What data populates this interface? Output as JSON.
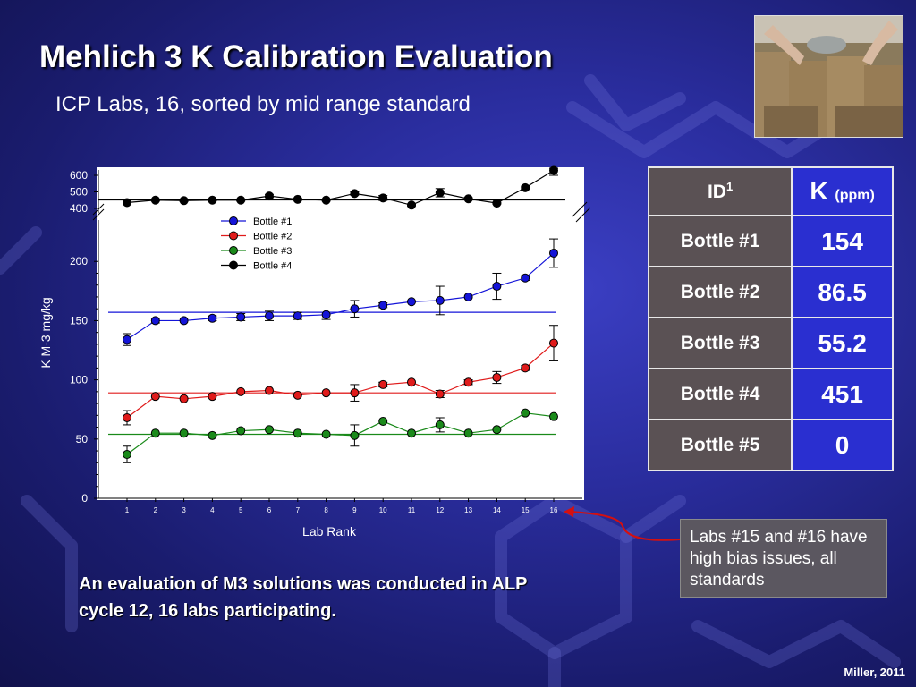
{
  "slide": {
    "title": "Mehlich 3 K Calibration Evaluation",
    "subtitle": "ICP Labs, 16, sorted by mid range standard",
    "bottom_note": "An evaluation of M3 solutions was conducted in ALP cycle 12, 16 labs participating.",
    "callout": "Labs #15 and #16 have high bias issues, all standards",
    "credit": "Miller, 2011"
  },
  "table": {
    "header_id": "ID",
    "header_id_sup": "1",
    "header_k": "K",
    "header_k_unit": "(ppm)",
    "rows": [
      {
        "id": "Bottle #1",
        "k": "154"
      },
      {
        "id": "Bottle #2",
        "k": "86.5"
      },
      {
        "id": "Bottle #3",
        "k": "55.2"
      },
      {
        "id": "Bottle #4",
        "k": "451"
      },
      {
        "id": "Bottle #5",
        "k": "0"
      }
    ]
  },
  "colors": {
    "bottle1": "#1414d8",
    "bottle2": "#e01b1b",
    "bottle3": "#1a8a1a",
    "bottle4": "#000000"
  },
  "chart_data": {
    "type": "line",
    "xlabel": "Lab Rank",
    "ylabel": "K M-3 mg/kg",
    "x": [
      1,
      2,
      3,
      4,
      5,
      6,
      7,
      8,
      9,
      10,
      11,
      12,
      13,
      14,
      15,
      16
    ],
    "lower_axis": {
      "ylim": [
        0,
        210
      ],
      "ticks": [
        0,
        50,
        100,
        150,
        200
      ]
    },
    "upper_axis": {
      "ylim": [
        400,
        600
      ],
      "ticks": [
        400,
        500,
        600
      ],
      "note": "broken y-axis section"
    },
    "grid": false,
    "legend": "upper-left",
    "series": [
      {
        "name": "Bottle #1",
        "color_key": "bottle1",
        "axis": "lower",
        "reference": 157,
        "values": [
          134,
          150,
          150,
          152,
          153,
          154,
          154,
          155,
          160,
          163,
          166,
          167,
          170,
          179,
          186,
          207
        ],
        "errors": [
          5,
          2,
          1,
          2,
          3,
          4,
          3,
          4,
          7,
          2,
          1,
          12,
          1,
          11,
          2,
          12
        ]
      },
      {
        "name": "Bottle #2",
        "color_key": "bottle2",
        "axis": "lower",
        "reference": 89,
        "values": [
          68,
          86,
          84,
          86,
          90,
          91,
          87,
          89,
          89,
          96,
          98,
          88,
          98,
          102,
          110,
          131
        ],
        "errors": [
          6,
          1,
          1,
          1,
          1,
          1,
          1,
          1,
          7,
          2,
          1,
          3,
          2,
          5,
          2,
          15
        ]
      },
      {
        "name": "Bottle #3",
        "color_key": "bottle3",
        "axis": "lower",
        "reference": 54,
        "values": [
          37,
          55,
          55,
          53,
          57,
          58,
          55,
          54,
          53,
          65,
          55,
          62,
          55,
          58,
          72,
          69
        ],
        "errors": [
          7,
          1,
          1,
          1,
          1,
          1,
          1,
          1,
          9,
          1,
          1,
          6,
          1,
          1,
          1,
          1
        ]
      },
      {
        "name": "Bottle #4",
        "color_key": "bottle4",
        "axis": "upper",
        "reference": 451,
        "values": [
          435,
          450,
          447,
          450,
          450,
          475,
          455,
          450,
          490,
          463,
          420,
          495,
          458,
          432,
          525,
          630
        ],
        "errors": [
          10,
          5,
          5,
          5,
          5,
          10,
          5,
          5,
          10,
          15,
          5,
          25,
          5,
          5,
          10,
          30
        ]
      }
    ]
  }
}
